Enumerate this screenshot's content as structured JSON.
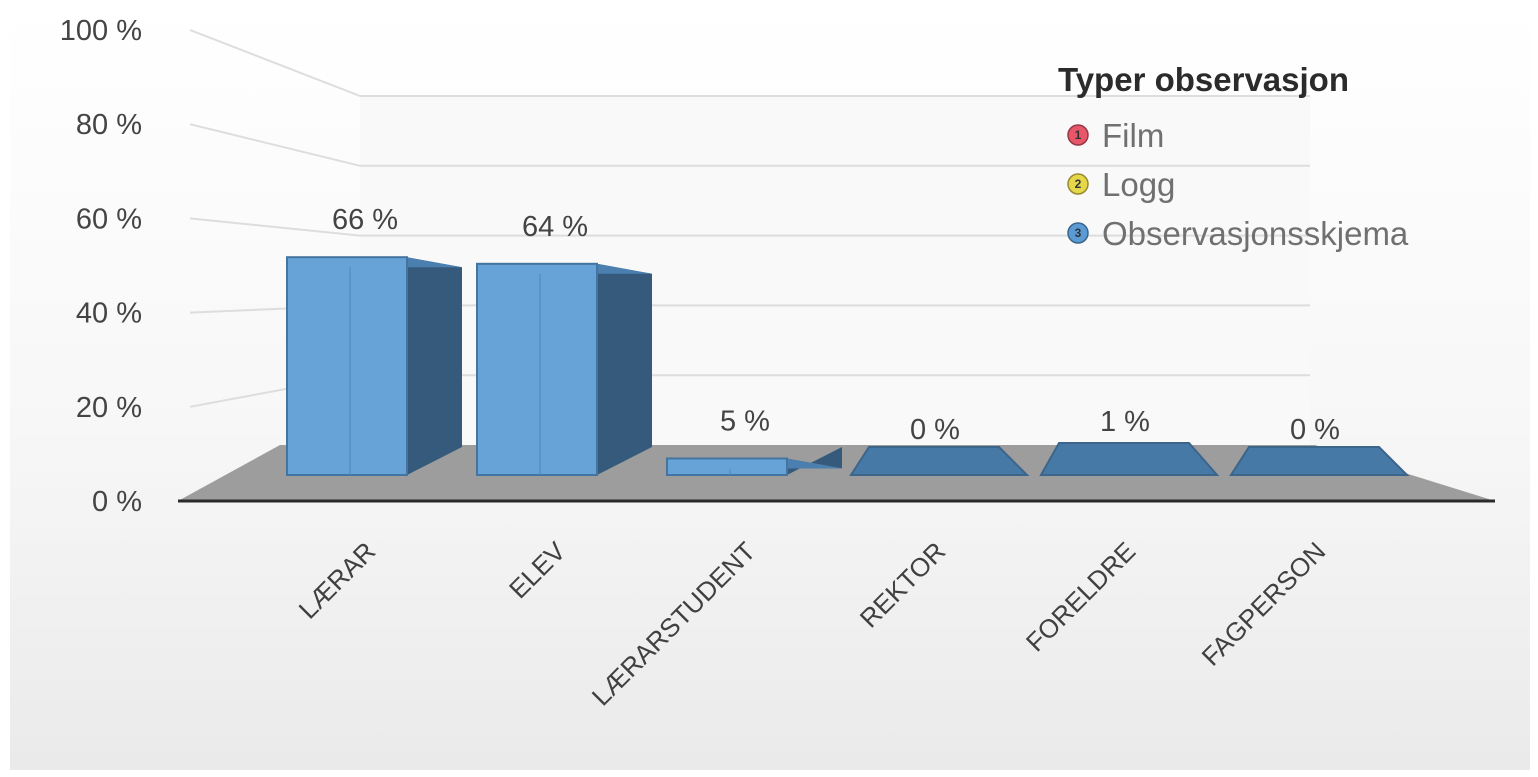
{
  "chart_data": {
    "type": "bar",
    "title": "",
    "xlabel": "",
    "ylabel": "",
    "categories": [
      "LÆRAR",
      "ELEV",
      "LÆRARSTUDENT",
      "REKTOR",
      "FORELDRE",
      "FAGPERSON"
    ],
    "values": [
      66,
      64,
      5,
      0,
      1,
      0
    ],
    "data_labels": [
      "66 %",
      "64 %",
      "5 %",
      "0 %",
      "1 %",
      "0 %"
    ],
    "ylim": [
      0,
      100
    ],
    "yticks": [
      0,
      20,
      40,
      60,
      80,
      100
    ],
    "ytick_labels": [
      "0 %",
      "20 %",
      "40 %",
      "60 %",
      "80 %",
      "100 %"
    ],
    "grid": true,
    "style": "3d-column",
    "bar_color": "#5b9bd5",
    "legend": {
      "title": "Typer observasjon",
      "placement": "top-right",
      "items": [
        {
          "number": "1",
          "label": "Film",
          "color": "#e8566a"
        },
        {
          "number": "2",
          "label": "Logg",
          "color": "#e6d64a"
        },
        {
          "number": "3",
          "label": "Observasjonsskjema",
          "color": "#5b9bd5"
        }
      ]
    }
  }
}
